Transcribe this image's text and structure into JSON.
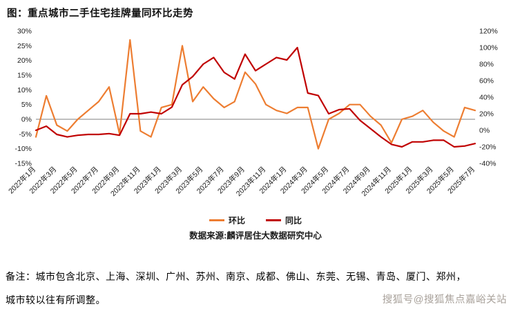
{
  "page": {
    "background": "#ffffff"
  },
  "title": "图：重点城市二手住宅挂牌量同环比走势",
  "chart_data": {
    "type": "line",
    "title": "图：重点城市二手住宅挂牌量同环比走势",
    "x": [
      "2022年1月",
      "2022年2月",
      "2022年3月",
      "2022年4月",
      "2022年5月",
      "2022年6月",
      "2022年7月",
      "2022年8月",
      "2022年9月",
      "2022年10月",
      "2022年11月",
      "2022年12月",
      "2023年1月",
      "2023年2月",
      "2023年3月",
      "2023年4月",
      "2023年5月",
      "2023年6月",
      "2023年7月",
      "2023年8月",
      "2023年9月",
      "2023年10月",
      "2023年11月",
      "2023年12月",
      "2024年1月",
      "2024年2月",
      "2024年3月",
      "2024年4月",
      "2024年5月",
      "2024年6月",
      "2024年7月",
      "2024年8月",
      "2024年9月",
      "2024年10月",
      "2024年11月",
      "2024年12月",
      "2025年1月",
      "2025年2月",
      "2025年3月",
      "2025年4月",
      "2025年5月",
      "2025年6月",
      "2025年7月"
    ],
    "x_tick_step": 2,
    "series": [
      {
        "name": "环比",
        "axis": "left",
        "color": "#ED7D31",
        "values": [
          -6,
          8,
          -2,
          -4,
          0,
          3,
          6,
          11,
          -5,
          27,
          -4,
          -6,
          4,
          5,
          25,
          6,
          11,
          7,
          4,
          6,
          16,
          12,
          5,
          3,
          2,
          4,
          4,
          -10,
          0,
          2,
          5,
          5,
          1,
          -2,
          -8,
          0,
          1,
          3,
          -1,
          -4,
          -6,
          4,
          3
        ]
      },
      {
        "name": "同比",
        "axis": "right",
        "color": "#C00000",
        "values": [
          0,
          5,
          -5,
          -8,
          -6,
          -5,
          -5,
          -4,
          -6,
          20,
          20,
          22,
          20,
          28,
          55,
          65,
          80,
          88,
          70,
          62,
          92,
          72,
          80,
          88,
          85,
          100,
          45,
          42,
          20,
          25,
          26,
          12,
          2,
          -8,
          -17,
          -20,
          -14,
          -14,
          -12,
          -12,
          -20,
          -19,
          -16
        ]
      }
    ],
    "left_axis": {
      "min": -15,
      "max": 30,
      "step": 5,
      "tick_labels": [
        "30%",
        "25%",
        "20%",
        "15%",
        "10%",
        "5%",
        "0%",
        "-5%",
        "-10%",
        "-15%"
      ]
    },
    "right_axis": {
      "min": -40,
      "max": 120,
      "step": 20,
      "tick_labels": [
        "120%",
        "100%",
        "80%",
        "60%",
        "40%",
        "20%",
        "0%",
        "-20%",
        "-40%"
      ]
    },
    "legend_position": "bottom",
    "gridlines": false
  },
  "legend": [
    {
      "label": "环比",
      "color": "#ED7D31"
    },
    {
      "label": "同比",
      "color": "#C00000"
    }
  ],
  "source": "数据来源:麟评居住大数据研究中心",
  "note": {
    "line1": "备注：城市包含北京、上海、深圳、广州、苏州、南京、成都、佛山、东莞、无锡、青岛、厦门、郑州，",
    "line2": "城市较以往有所调整。"
  },
  "watermark": "搜狐号@搜狐焦点嘉峪关站"
}
